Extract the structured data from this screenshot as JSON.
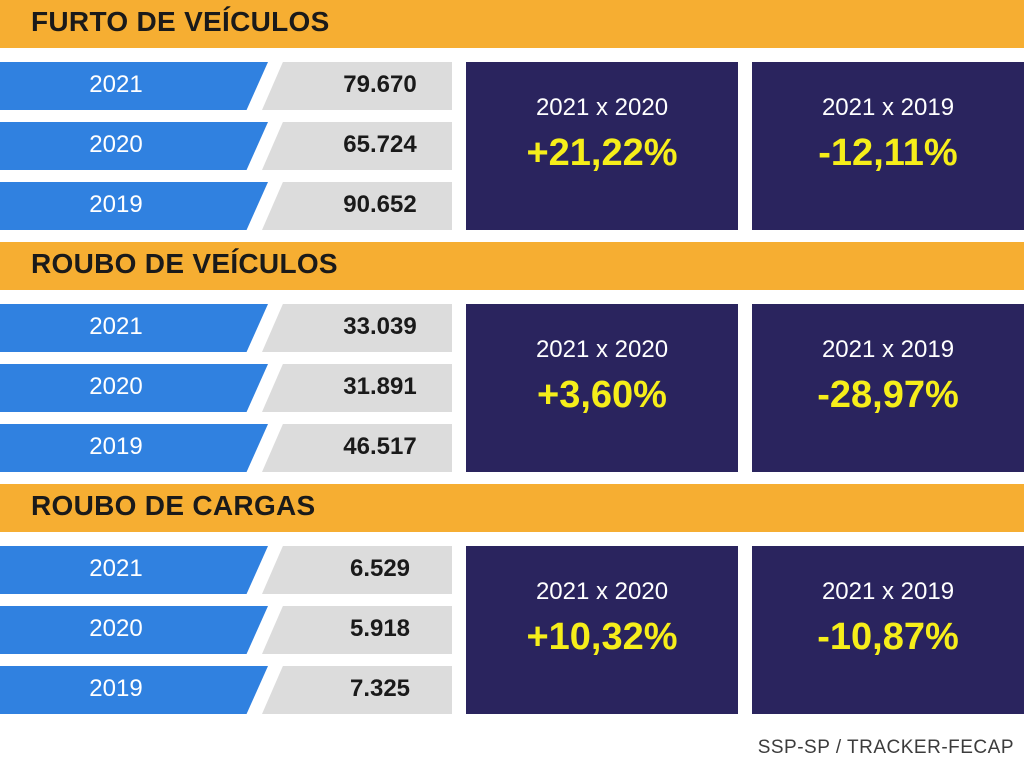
{
  "sections": [
    {
      "title": "FURTO DE VEÍCULOS",
      "rows": [
        {
          "year": "2021",
          "value": "79.670"
        },
        {
          "year": "2020",
          "value": "65.724"
        },
        {
          "year": "2019",
          "value": "90.652"
        }
      ],
      "comparisons": [
        {
          "label": "2021 x 2020",
          "value": "+21,22%"
        },
        {
          "label": "2021 x 2019",
          "value": "-12,11%"
        }
      ]
    },
    {
      "title": "ROUBO DE VEÍCULOS",
      "rows": [
        {
          "year": "2021",
          "value": "33.039"
        },
        {
          "year": "2020",
          "value": "31.891"
        },
        {
          "year": "2019",
          "value": "46.517"
        }
      ],
      "comparisons": [
        {
          "label": "2021 x 2020",
          "value": "+3,60%"
        },
        {
          "label": "2021 x 2019",
          "value": "-28,97%"
        }
      ]
    },
    {
      "title": "ROUBO DE CARGAS",
      "rows": [
        {
          "year": "2021",
          "value": "6.529"
        },
        {
          "year": "2020",
          "value": "5.918"
        },
        {
          "year": "2019",
          "value": "7.325"
        }
      ],
      "comparisons": [
        {
          "label": "2021 x 2020",
          "value": "+10,32%"
        },
        {
          "label": "2021 x 2019",
          "value": "-10,87%"
        }
      ]
    }
  ],
  "source": "SSP-SP / TRACKER-FECAP",
  "colors": {
    "band": "#f6ae32",
    "year_cell": "#3081e0",
    "value_cell": "#dcdcdc",
    "box": "#2a245e",
    "highlight": "#f6ee1a"
  }
}
